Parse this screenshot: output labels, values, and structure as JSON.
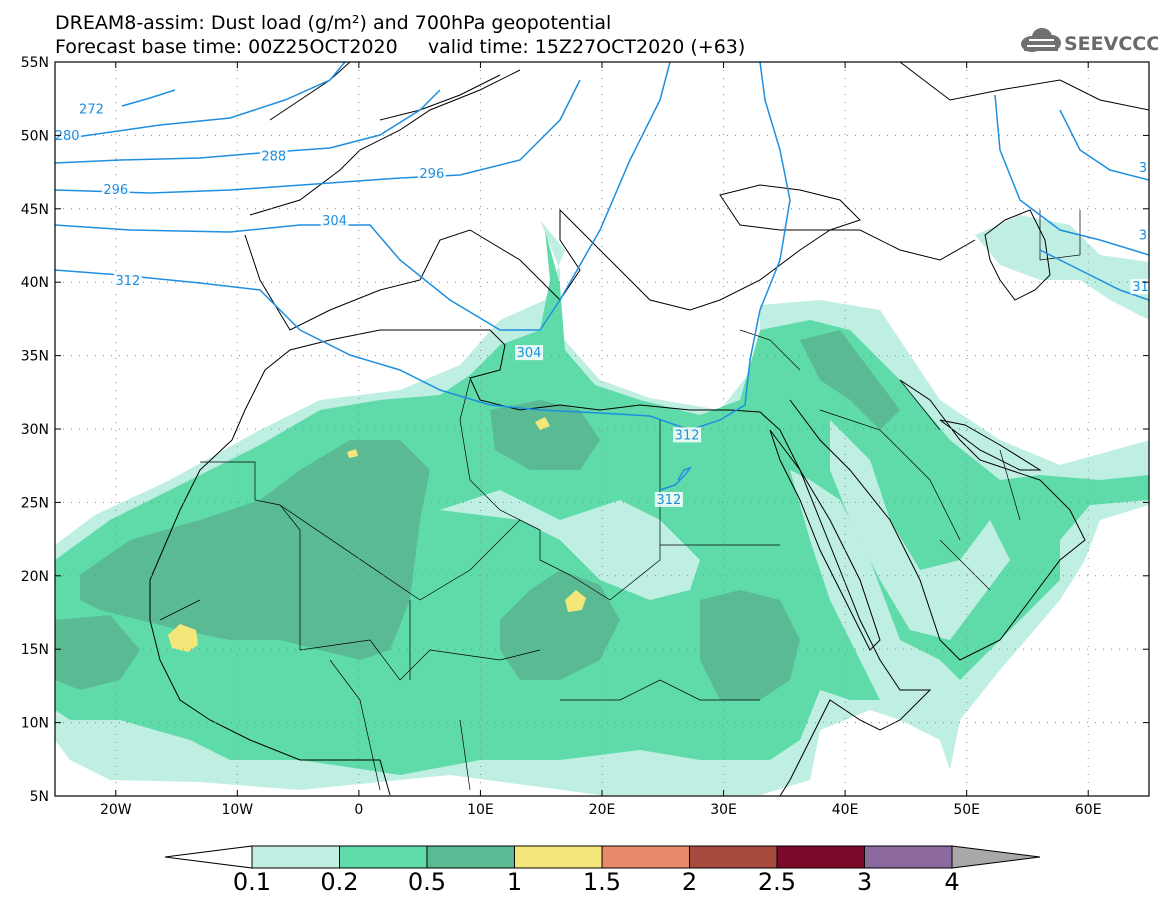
{
  "header": {
    "title_line1": "DREAM8-assim: Dust load (g/m²) and 700hPa geopotential",
    "title_line2": "Forecast base time: 00Z25OCT2020     valid time: 15Z27OCT2020 (+63)",
    "logo_text": "SEEVCCC"
  },
  "map": {
    "lon_range": [
      -25,
      65
    ],
    "lat_range": [
      5,
      55
    ],
    "lat_labels": [
      "55N",
      "50N",
      "45N",
      "40N",
      "35N",
      "30N",
      "25N",
      "20N",
      "15N",
      "10N",
      "5N"
    ],
    "lon_labels": [
      "20W",
      "10W",
      "0",
      "10E",
      "20E",
      "30E",
      "40E",
      "50E",
      "60E"
    ],
    "contour_labels": [
      {
        "text": "272",
        "lon": -22,
        "lat": 51.7
      },
      {
        "text": "280",
        "lon": -24,
        "lat": 49.9
      },
      {
        "text": "288",
        "lon": -7,
        "lat": 48.5
      },
      {
        "text": "296",
        "lon": -20,
        "lat": 46.2
      },
      {
        "text": "296",
        "lon": 6,
        "lat": 47.3
      },
      {
        "text": "304",
        "lon": -2,
        "lat": 44.1
      },
      {
        "text": "304",
        "lon": 14,
        "lat": 35.1
      },
      {
        "text": "312",
        "lon": -19,
        "lat": 40.0
      },
      {
        "text": "312",
        "lon": 27,
        "lat": 29.5
      },
      {
        "text": "312",
        "lon": 25.5,
        "lat": 25.1
      },
      {
        "text": "3",
        "lon": 64.5,
        "lat": 47.7
      },
      {
        "text": "3",
        "lon": 64.5,
        "lat": 43.1
      },
      {
        "text": "31",
        "lon": 64.3,
        "lat": 39.6
      }
    ],
    "colors": {
      "land_border": "#000000",
      "contour": "#1e8fe0",
      "grid": "#888888"
    }
  },
  "colorbar": {
    "labels": [
      "0.1",
      "0.2",
      "0.5",
      "1",
      "1.5",
      "2",
      "2.5",
      "3",
      "4"
    ],
    "colors": [
      "#ffffff",
      "#bfeee3",
      "#5fdba9",
      "#5aba93",
      "#f4e77a",
      "#e8896a",
      "#a94a3e",
      "#7b0a2a",
      "#8c6aa0",
      "#a8a8a8"
    ]
  }
}
